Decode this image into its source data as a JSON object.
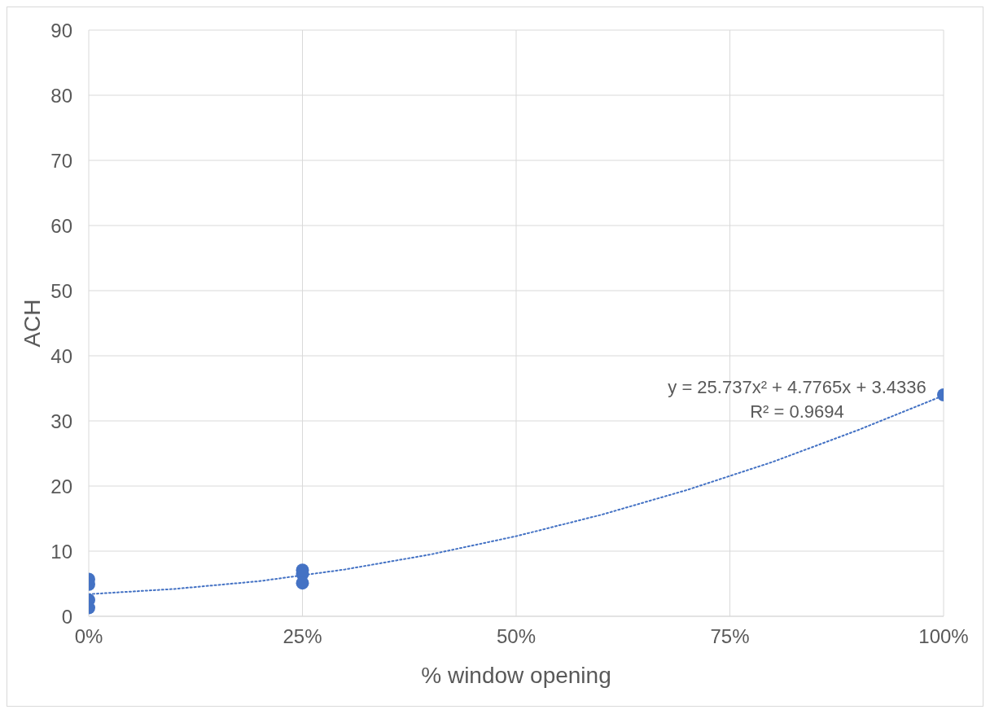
{
  "chart_data": {
    "type": "scatter",
    "xlabel": "% window opening",
    "ylabel": "ACH",
    "xlim": [
      0,
      1
    ],
    "xticks": [
      {
        "value": 0,
        "label": "0%"
      },
      {
        "value": 0.25,
        "label": "25%"
      },
      {
        "value": 0.5,
        "label": "50%"
      },
      {
        "value": 0.75,
        "label": "75%"
      },
      {
        "value": 1,
        "label": "100%"
      }
    ],
    "ylim": [
      0,
      90
    ],
    "yticks": [
      0,
      10,
      20,
      30,
      40,
      50,
      60,
      70,
      80,
      90
    ],
    "grid": true,
    "marker": "circle",
    "series": [
      {
        "color": "#4472c4",
        "x": [
          0,
          0,
          0,
          0,
          0.25,
          0.25,
          0.25,
          1
        ],
        "values": [
          5.7,
          4.9,
          2.5,
          1.3,
          7.1,
          6.5,
          5.1,
          34
        ]
      },
      {
        "type": "line",
        "color": "#4472c4",
        "line_style": "dotted",
        "marker": "none",
        "x": [
          0,
          0.1,
          0.2,
          0.3,
          0.4,
          0.5,
          0.6,
          0.7,
          0.8,
          0.9,
          1
        ],
        "values": [
          3.4,
          4.2,
          5.4,
          7.2,
          9.5,
          12.3,
          15.6,
          19.4,
          23.7,
          28.6,
          33.9
        ]
      }
    ],
    "annotations": [
      "y = 25.737x² + 4.7765x + 3.4336",
      "R² = 0.9694"
    ]
  }
}
